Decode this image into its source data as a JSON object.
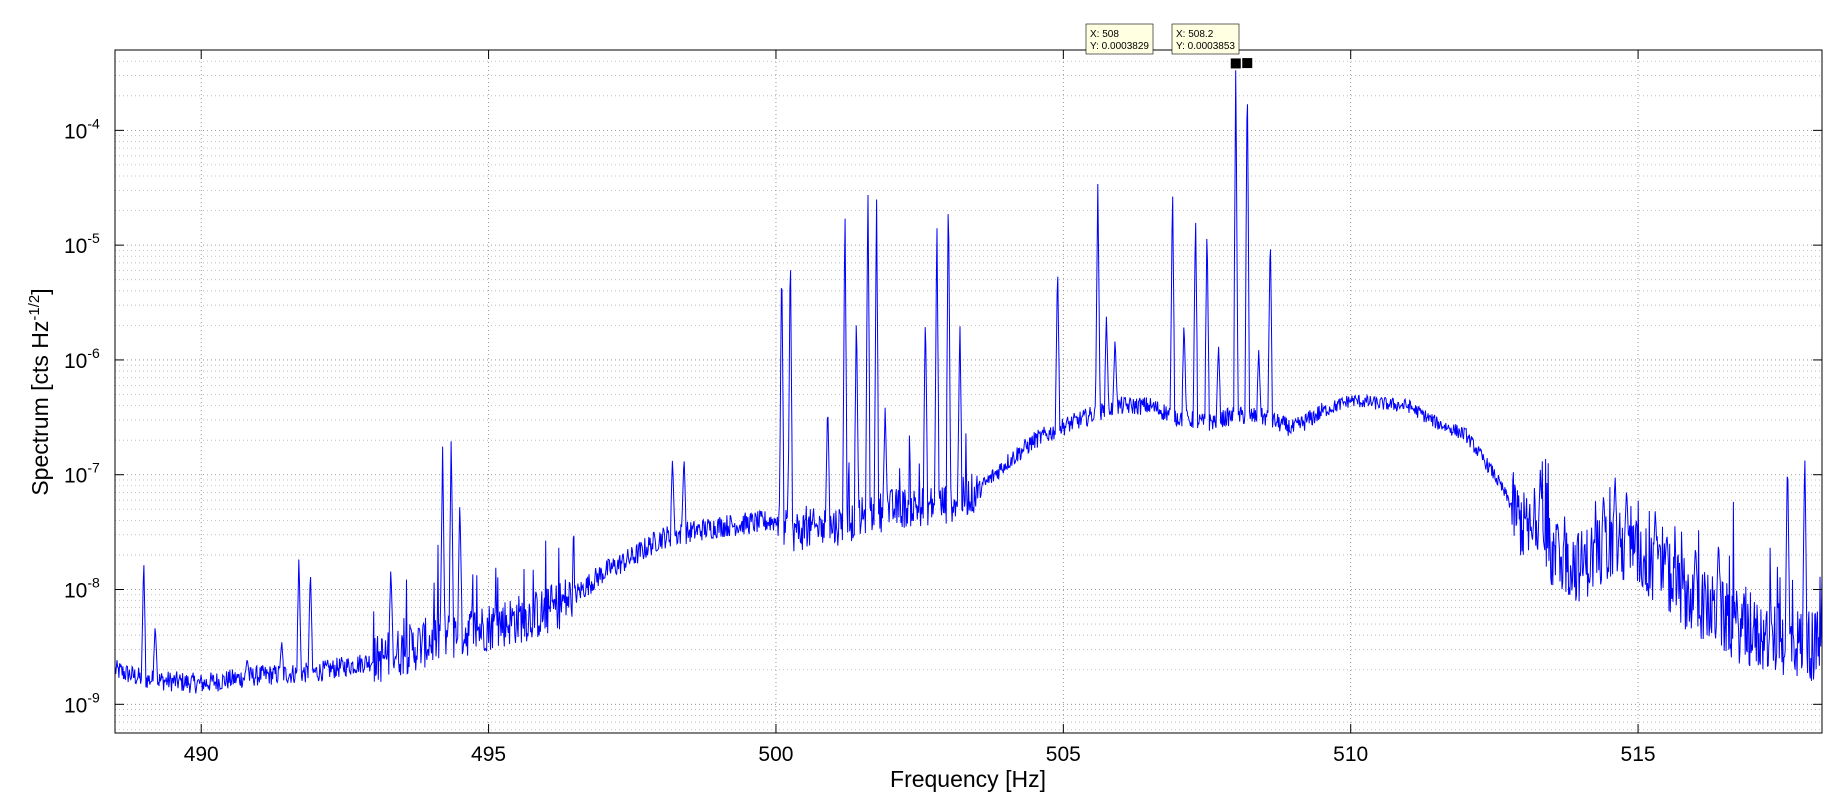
{
  "chart_data": {
    "type": "line",
    "title": "",
    "xlabel": "Frequency [Hz]",
    "ylabel_main": "Spectrum [cts Hz",
    "ylabel_exp": "-1/2",
    "ylabel_close": "]",
    "xlim": [
      488.5,
      518.2
    ],
    "ylim_log10": [
      -9.25,
      -3.3
    ],
    "y_scale": "log",
    "grid": true,
    "line_color": "#0000ff",
    "x_ticks": [
      {
        "value": 490,
        "label": "490"
      },
      {
        "value": 495,
        "label": "495"
      },
      {
        "value": 500,
        "label": "500"
      },
      {
        "value": 505,
        "label": "505"
      },
      {
        "value": 510,
        "label": "510"
      },
      {
        "value": 515,
        "label": "515"
      }
    ],
    "y_ticks": [
      {
        "exp": -9,
        "base": "10",
        "sup": "-9"
      },
      {
        "exp": -8,
        "base": "10",
        "sup": "-8"
      },
      {
        "exp": -7,
        "base": "10",
        "sup": "-7"
      },
      {
        "exp": -6,
        "base": "10",
        "sup": "-6"
      },
      {
        "exp": -5,
        "base": "10",
        "sup": "-5"
      },
      {
        "exp": -4,
        "base": "10",
        "sup": "-4"
      }
    ],
    "baseline": [
      [
        488.5,
        -8.7
      ],
      [
        489.0,
        -8.78
      ],
      [
        490.0,
        -8.82
      ],
      [
        491.0,
        -8.75
      ],
      [
        492.0,
        -8.72
      ],
      [
        493.0,
        -8.62
      ],
      [
        494.0,
        -8.45
      ],
      [
        495.0,
        -8.32
      ],
      [
        496.0,
        -8.2
      ],
      [
        496.5,
        -8.05
      ],
      [
        497.0,
        -7.85
      ],
      [
        497.5,
        -7.72
      ],
      [
        498.0,
        -7.55
      ],
      [
        498.5,
        -7.5
      ],
      [
        499.0,
        -7.45
      ],
      [
        500.0,
        -7.4
      ],
      [
        500.2,
        -7.5
      ],
      [
        501.0,
        -7.45
      ],
      [
        502.0,
        -7.3
      ],
      [
        503.0,
        -7.25
      ],
      [
        503.5,
        -7.15
      ],
      [
        504.0,
        -6.9
      ],
      [
        504.5,
        -6.7
      ],
      [
        505.0,
        -6.58
      ],
      [
        505.5,
        -6.48
      ],
      [
        506.0,
        -6.4
      ],
      [
        506.5,
        -6.4
      ],
      [
        507.0,
        -6.5
      ],
      [
        507.5,
        -6.55
      ],
      [
        508.0,
        -6.48
      ],
      [
        508.5,
        -6.5
      ],
      [
        509.0,
        -6.6
      ],
      [
        509.5,
        -6.45
      ],
      [
        510.0,
        -6.35
      ],
      [
        510.5,
        -6.38
      ],
      [
        511.0,
        -6.4
      ],
      [
        511.5,
        -6.55
      ],
      [
        512.0,
        -6.65
      ],
      [
        512.5,
        -7.0
      ],
      [
        513.0,
        -7.45
      ],
      [
        513.5,
        -7.7
      ],
      [
        514.0,
        -7.8
      ],
      [
        514.5,
        -7.6
      ],
      [
        515.0,
        -7.7
      ],
      [
        515.5,
        -7.9
      ],
      [
        516.0,
        -8.1
      ],
      [
        517.0,
        -8.4
      ],
      [
        518.2,
        -8.5
      ]
    ],
    "peaks": [
      [
        489.0,
        -7.72
      ],
      [
        489.2,
        -8.3
      ],
      [
        490.8,
        -8.6
      ],
      [
        491.4,
        -8.45
      ],
      [
        491.7,
        -7.7
      ],
      [
        491.9,
        -7.8
      ],
      [
        493.3,
        -7.8
      ],
      [
        494.2,
        -6.75
      ],
      [
        494.35,
        -6.65
      ],
      [
        494.5,
        -7.2
      ],
      [
        498.2,
        -6.85
      ],
      [
        498.4,
        -6.82
      ],
      [
        500.1,
        -5.05
      ],
      [
        500.25,
        -4.95
      ],
      [
        500.9,
        -6.35
      ],
      [
        501.2,
        -4.6
      ],
      [
        501.4,
        -5.55
      ],
      [
        501.6,
        -4.4
      ],
      [
        501.75,
        -4.55
      ],
      [
        501.9,
        -6.4
      ],
      [
        502.6,
        -5.55
      ],
      [
        502.8,
        -4.75
      ],
      [
        503.0,
        -4.45
      ],
      [
        503.2,
        -5.65
      ],
      [
        504.9,
        -5.15
      ],
      [
        505.6,
        -4.45
      ],
      [
        505.75,
        -5.6
      ],
      [
        505.9,
        -5.8
      ],
      [
        506.9,
        -4.45
      ],
      [
        507.1,
        -5.65
      ],
      [
        507.3,
        -4.7
      ],
      [
        507.5,
        -4.8
      ],
      [
        507.7,
        -5.85
      ],
      [
        508.0,
        -3.417
      ],
      [
        508.2,
        -3.414
      ],
      [
        508.4,
        -5.9
      ],
      [
        508.6,
        -4.85
      ],
      [
        513.3,
        -6.95
      ],
      [
        513.6,
        -7.4
      ],
      [
        514.4,
        -7.15
      ],
      [
        514.6,
        -7.0
      ],
      [
        514.8,
        -7.1
      ],
      [
        515.3,
        -7.3
      ],
      [
        515.5,
        -7.5
      ],
      [
        516.0,
        -7.6
      ],
      [
        516.4,
        -7.55
      ],
      [
        517.6,
        -6.8
      ],
      [
        517.9,
        -6.75
      ]
    ],
    "data_tips": [
      {
        "x": 508,
        "y_log10": -3.417,
        "line1": "X: 508",
        "line2": "Y: 0.0003829"
      },
      {
        "x": 508.2,
        "y_log10": -3.414,
        "line1": "X: 508.2",
        "line2": "Y: 0.0003853"
      }
    ]
  }
}
